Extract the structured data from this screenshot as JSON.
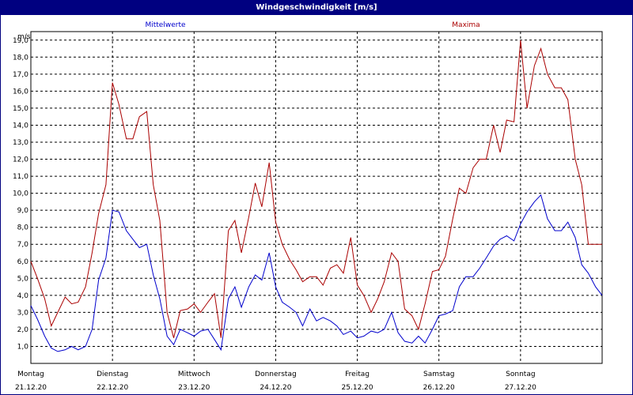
{
  "window": {
    "title": "Windgeschwindigkeit [m/s]"
  },
  "chart_data": {
    "type": "line",
    "title": "Windgeschwindigkeit [m/s]",
    "ylabel": "m/s",
    "ylim": [
      0,
      19.5
    ],
    "y_ticks": [
      "1,0",
      "2,0",
      "3,0",
      "4,0",
      "5,0",
      "6,0",
      "7,0",
      "8,0",
      "9,0",
      "10,0",
      "11,0",
      "12,0",
      "13,0",
      "14,0",
      "15,0",
      "16,0",
      "17,0",
      "18,0",
      "19,0"
    ],
    "xlim": [
      0,
      7
    ],
    "x_ticks": [
      {
        "day": "Montag",
        "date": "21.12.20"
      },
      {
        "day": "Dienstag",
        "date": "22.12.20"
      },
      {
        "day": "Mittwoch",
        "date": "23.12.20"
      },
      {
        "day": "Donnerstag",
        "date": "24.12.20"
      },
      {
        "day": "Freitag",
        "date": "25.12.20"
      },
      {
        "day": "Samstag",
        "date": "26.12.20"
      },
      {
        "day": "Sonntag",
        "date": "27.12.20"
      }
    ],
    "grid": true,
    "legend": "top",
    "series": [
      {
        "name": "Mittelwerte",
        "color": "#0000cc",
        "x": [
          0,
          0.08,
          0.17,
          0.25,
          0.33,
          0.42,
          0.5,
          0.58,
          0.67,
          0.75,
          0.83,
          0.92,
          1.0,
          1.08,
          1.17,
          1.25,
          1.33,
          1.42,
          1.5,
          1.58,
          1.67,
          1.75,
          1.83,
          1.92,
          2.0,
          2.08,
          2.17,
          2.25,
          2.33,
          2.42,
          2.5,
          2.58,
          2.67,
          2.75,
          2.83,
          2.92,
          3.0,
          3.08,
          3.17,
          3.25,
          3.33,
          3.42,
          3.5,
          3.58,
          3.67,
          3.75,
          3.83,
          3.92,
          4.0,
          4.08,
          4.17,
          4.25,
          4.33,
          4.42,
          4.5,
          4.58,
          4.67,
          4.75,
          4.83,
          4.92,
          5.0,
          5.08,
          5.17,
          5.25,
          5.33,
          5.42,
          5.5,
          5.58,
          5.67,
          5.75,
          5.83,
          5.92,
          6.0,
          6.08,
          6.17,
          6.25,
          6.33,
          6.42,
          6.5,
          6.58,
          6.67,
          6.75,
          6.83,
          6.92,
          7.0
        ],
        "values": [
          3.4,
          2.6,
          1.6,
          0.9,
          0.7,
          0.8,
          1.0,
          0.8,
          1.0,
          2.0,
          4.9,
          6.2,
          9.0,
          8.9,
          7.8,
          7.3,
          6.8,
          7.0,
          5.2,
          3.8,
          1.6,
          1.1,
          2.0,
          1.8,
          1.6,
          1.9,
          2.0,
          1.4,
          0.8,
          3.8,
          4.5,
          3.3,
          4.5,
          5.2,
          4.9,
          6.5,
          4.5,
          3.6,
          3.3,
          3.0,
          2.2,
          3.2,
          2.5,
          2.7,
          2.5,
          2.2,
          1.7,
          1.9,
          1.5,
          1.6,
          1.9,
          1.8,
          2.0,
          3.0,
          1.8,
          1.3,
          1.2,
          1.6,
          1.2,
          2.0,
          2.8,
          2.9,
          3.1,
          4.5,
          5.1,
          5.1,
          5.6,
          6.2,
          6.9,
          7.3,
          7.5,
          7.2,
          8.2,
          8.9,
          9.5,
          9.9,
          8.5,
          7.8,
          7.8,
          8.3,
          7.4,
          5.8,
          5.3,
          4.5,
          4.0
        ]
      },
      {
        "name": "Maxima",
        "color": "#aa0000",
        "x": [
          0,
          0.08,
          0.17,
          0.25,
          0.33,
          0.42,
          0.5,
          0.58,
          0.67,
          0.75,
          0.83,
          0.92,
          1.0,
          1.08,
          1.17,
          1.25,
          1.33,
          1.42,
          1.5,
          1.58,
          1.67,
          1.75,
          1.83,
          1.92,
          2.0,
          2.08,
          2.17,
          2.25,
          2.33,
          2.42,
          2.5,
          2.58,
          2.67,
          2.75,
          2.83,
          2.92,
          3.0,
          3.08,
          3.17,
          3.25,
          3.33,
          3.42,
          3.5,
          3.58,
          3.67,
          3.75,
          3.83,
          3.92,
          4.0,
          4.08,
          4.17,
          4.25,
          4.33,
          4.42,
          4.5,
          4.58,
          4.67,
          4.75,
          4.83,
          4.92,
          5.0,
          5.08,
          5.17,
          5.25,
          5.33,
          5.42,
          5.5,
          5.58,
          5.67,
          5.75,
          5.83,
          5.92,
          6.0,
          6.08,
          6.17,
          6.25,
          6.33,
          6.42,
          6.5,
          6.58,
          6.67,
          6.75,
          6.83,
          6.92,
          7.0
        ],
        "values": [
          6.0,
          5.0,
          3.8,
          2.2,
          3.0,
          3.9,
          3.5,
          3.6,
          4.5,
          6.5,
          8.8,
          10.5,
          16.5,
          15.2,
          13.2,
          13.2,
          14.5,
          14.8,
          10.5,
          8.4,
          3.0,
          1.5,
          3.1,
          3.2,
          3.5,
          3.0,
          3.6,
          4.1,
          1.5,
          7.8,
          8.4,
          6.5,
          8.6,
          10.6,
          9.2,
          11.8,
          8.3,
          7.0,
          6.1,
          5.5,
          4.8,
          5.1,
          5.1,
          4.6,
          5.6,
          5.8,
          5.3,
          7.4,
          4.6,
          4.0,
          3.0,
          3.8,
          4.8,
          6.5,
          6.0,
          3.2,
          2.8,
          2.0,
          3.5,
          5.4,
          5.5,
          6.3,
          8.5,
          10.3,
          10.0,
          11.5,
          12.0,
          12.0,
          14.0,
          12.4,
          14.3,
          14.2,
          19.0,
          15.0,
          17.5,
          18.5,
          17.0,
          16.2,
          16.2,
          15.5,
          12.0,
          10.5,
          7.0,
          7.0,
          7.0
        ]
      }
    ]
  }
}
